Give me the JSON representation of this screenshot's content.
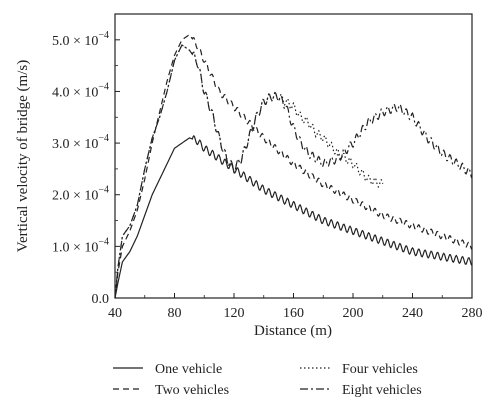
{
  "chart_data": {
    "type": "line",
    "xlabel": "Distance (m)",
    "ylabel": "Vertical velocity of bridge (m/s)",
    "xlim": [
      40,
      280
    ],
    "ylim": [
      0,
      0.00055
    ],
    "x_ticks": [
      40,
      80,
      120,
      160,
      200,
      240,
      280
    ],
    "x_tick_labels": [
      "40",
      "80",
      "120",
      "160",
      "200",
      "240",
      "280"
    ],
    "y_ticks": [
      0,
      0.0001,
      0.0002,
      0.0003,
      0.0004,
      0.0005
    ],
    "y_tick_labels": [
      {
        "mantissa": "0.0",
        "exp": ""
      },
      {
        "mantissa": "1.0 × 10",
        "exp": "−4"
      },
      {
        "mantissa": "2.0 × 10",
        "exp": "−4"
      },
      {
        "mantissa": "3.0 × 10",
        "exp": "−4"
      },
      {
        "mantissa": "4.0 × 10",
        "exp": "−4"
      },
      {
        "mantissa": "5.0 × 10",
        "exp": "−4"
      }
    ],
    "grid": false,
    "legend_position": "bottom",
    "series": [
      {
        "name": "One vehicle",
        "dash": "",
        "oscillation": 7e-06,
        "points": [
          [
            40,
            0.0
          ],
          [
            42,
            3e-05
          ],
          [
            45,
            7e-05
          ],
          [
            50,
            9e-05
          ],
          [
            55,
            0.00012
          ],
          [
            60,
            0.00016
          ],
          [
            65,
            0.0002
          ],
          [
            70,
            0.00023
          ],
          [
            75,
            0.00026
          ],
          [
            80,
            0.00029
          ],
          [
            85,
            0.0003
          ],
          [
            90,
            0.00031
          ],
          [
            95,
            0.000305
          ],
          [
            100,
            0.00029
          ],
          [
            110,
            0.00027
          ],
          [
            120,
            0.00025
          ],
          [
            140,
            0.00021
          ],
          [
            160,
            0.00018
          ],
          [
            180,
            0.00015
          ],
          [
            200,
            0.00013
          ],
          [
            220,
            0.00011
          ],
          [
            240,
            9e-05
          ],
          [
            260,
            8e-05
          ],
          [
            280,
            7e-05
          ]
        ]
      },
      {
        "name": "Two vehicles",
        "dash": "6,4",
        "oscillation": 6e-06,
        "points": [
          [
            40,
            0.0
          ],
          [
            42,
            5e-05
          ],
          [
            45,
            0.0001
          ],
          [
            50,
            0.00013
          ],
          [
            55,
            0.00017
          ],
          [
            60,
            0.00023
          ],
          [
            65,
            0.0003
          ],
          [
            70,
            0.00036
          ],
          [
            75,
            0.00042
          ],
          [
            80,
            0.00047
          ],
          [
            85,
            0.0005
          ],
          [
            90,
            0.00051
          ],
          [
            95,
            0.00049
          ],
          [
            100,
            0.00046
          ],
          [
            110,
            0.0004
          ],
          [
            120,
            0.00037
          ],
          [
            130,
            0.00034
          ],
          [
            140,
            0.00031
          ],
          [
            160,
            0.00026
          ],
          [
            180,
            0.00022
          ],
          [
            200,
            0.00019
          ],
          [
            220,
            0.00016
          ],
          [
            240,
            0.00014
          ],
          [
            260,
            0.00012
          ],
          [
            280,
            0.0001
          ]
        ]
      },
      {
        "name": "Four vehicles",
        "dash": "1.5,2.5",
        "oscillation": 8e-06,
        "points": [
          [
            40,
            0.0
          ],
          [
            42,
            6e-05
          ],
          [
            45,
            0.00012
          ],
          [
            50,
            0.00014
          ],
          [
            55,
            0.00018
          ],
          [
            60,
            0.00025
          ],
          [
            65,
            0.00031
          ],
          [
            70,
            0.00035
          ],
          [
            75,
            0.0004
          ],
          [
            80,
            0.00046
          ],
          [
            85,
            0.00049
          ],
          [
            90,
            0.00048
          ],
          [
            95,
            0.00046
          ],
          [
            100,
            0.0004
          ],
          [
            105,
            0.00036
          ],
          [
            110,
            0.00031
          ],
          [
            115,
            0.00027
          ],
          [
            120,
            0.00025
          ],
          [
            125,
            0.00027
          ],
          [
            130,
            0.00031
          ],
          [
            135,
            0.00035
          ],
          [
            140,
            0.00038
          ],
          [
            145,
            0.00039
          ],
          [
            150,
            0.00039
          ],
          [
            155,
            0.00038
          ],
          [
            160,
            0.00037
          ],
          [
            165,
            0.00035
          ],
          [
            170,
            0.00034
          ],
          [
            175,
            0.00032
          ],
          [
            180,
            0.00031
          ],
          [
            190,
            0.00028
          ],
          [
            200,
            0.00026
          ],
          [
            210,
            0.00023
          ],
          [
            220,
            0.00022
          ]
        ]
      },
      {
        "name": "Eight vehicles",
        "dash": "8,3,2,3",
        "oscillation": 8e-06,
        "points": [
          [
            40,
            0.0
          ],
          [
            42,
            6e-05
          ],
          [
            45,
            0.00012
          ],
          [
            50,
            0.00014
          ],
          [
            55,
            0.00018
          ],
          [
            60,
            0.00025
          ],
          [
            65,
            0.00031
          ],
          [
            70,
            0.00035
          ],
          [
            75,
            0.0004
          ],
          [
            80,
            0.00046
          ],
          [
            85,
            0.00049
          ],
          [
            90,
            0.00048
          ],
          [
            95,
            0.00046
          ],
          [
            100,
            0.0004
          ],
          [
            105,
            0.00036
          ],
          [
            110,
            0.00031
          ],
          [
            115,
            0.00027
          ],
          [
            120,
            0.00025
          ],
          [
            125,
            0.00027
          ],
          [
            130,
            0.00031
          ],
          [
            135,
            0.00035
          ],
          [
            140,
            0.00038
          ],
          [
            145,
            0.00039
          ],
          [
            150,
            0.00039
          ],
          [
            155,
            0.00037
          ],
          [
            160,
            0.00033
          ],
          [
            165,
            0.0003
          ],
          [
            170,
            0.00028
          ],
          [
            175,
            0.00027
          ],
          [
            180,
            0.00026
          ],
          [
            190,
            0.00027
          ],
          [
            200,
            0.0003
          ],
          [
            210,
            0.00034
          ],
          [
            220,
            0.00036
          ],
          [
            230,
            0.00037
          ],
          [
            240,
            0.00035
          ],
          [
            250,
            0.00031
          ],
          [
            260,
            0.00028
          ],
          [
            270,
            0.00026
          ],
          [
            280,
            0.00024
          ]
        ]
      }
    ]
  }
}
